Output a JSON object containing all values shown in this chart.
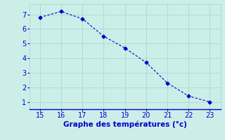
{
  "x": [
    15,
    16,
    17,
    18,
    19,
    20,
    21,
    22,
    23
  ],
  "y": [
    6.8,
    7.2,
    6.7,
    5.5,
    4.7,
    3.7,
    2.3,
    1.4,
    1.0
  ],
  "line_color": "#0000cc",
  "marker": "D",
  "marker_size": 2.5,
  "bg_color": "#cceee8",
  "grid_color": "#aad8d0",
  "xlabel": "Graphe des températures (°c)",
  "xlabel_color": "#0000cc",
  "xlabel_fontsize": 7.5,
  "tick_color": "#0000cc",
  "tick_fontsize": 7,
  "xlim": [
    14.5,
    23.5
  ],
  "ylim": [
    0.5,
    7.7
  ],
  "xticks": [
    15,
    16,
    17,
    18,
    19,
    20,
    21,
    22,
    23
  ],
  "yticks": [
    1,
    2,
    3,
    4,
    5,
    6,
    7
  ],
  "spine_color": "#0000cc",
  "spine_bottom_color": "#0000cc",
  "linewidth": 0.8
}
